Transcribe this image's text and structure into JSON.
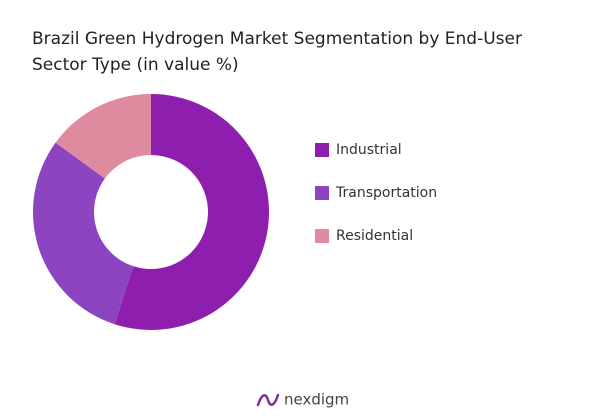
{
  "chart_data": {
    "type": "donut",
    "title": "Brazil Green Hydrogen Market Segmentation by End-User Sector Type (in value %)",
    "categories": [
      "Industrial",
      "Transportation",
      "Residential"
    ],
    "values": [
      55,
      30,
      15
    ],
    "colors": [
      "#8e1fae",
      "#8c44c0",
      "#de8ba0"
    ]
  },
  "footer": {
    "logo": "nexdigm"
  }
}
